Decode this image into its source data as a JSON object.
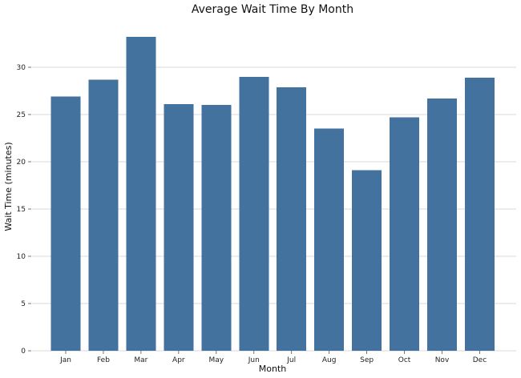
{
  "chart_data": {
    "type": "bar",
    "title": "Average Wait Time By Month",
    "xlabel": "Month",
    "ylabel": "Wait Time (minutes)",
    "categories": [
      "Jan",
      "Feb",
      "Mar",
      "Apr",
      "May",
      "Jun",
      "Jul",
      "Aug",
      "Sep",
      "Oct",
      "Nov",
      "Dec"
    ],
    "values": [
      26.9,
      28.7,
      33.2,
      26.1,
      26.0,
      29.0,
      27.9,
      23.5,
      19.1,
      24.7,
      26.7,
      28.9
    ],
    "ylim": [
      0,
      35
    ],
    "yticks": [
      0,
      5,
      10,
      15,
      20,
      25,
      30
    ],
    "grid": true,
    "bar_color": "#43729e",
    "grid_color": "#d9d9d9"
  }
}
